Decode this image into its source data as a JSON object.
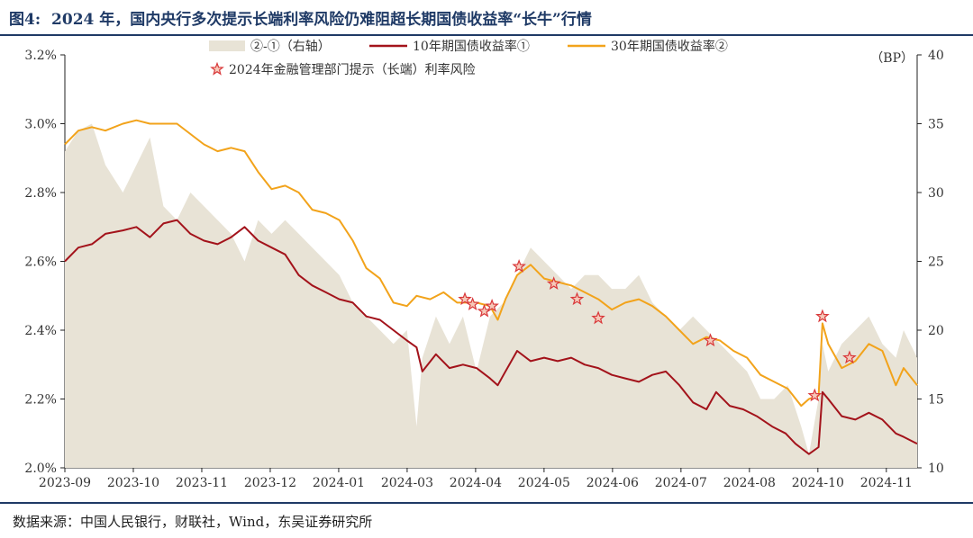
{
  "title": {
    "fig_label": "图4:",
    "text": "2024 年，国内央行多次提示长端利率风险仍难阻超长期国债收益率“长牛”行情"
  },
  "source": "数据来源：中国人民银行，财联社，Wind，东吴证券研究所",
  "chart_data": {
    "type": "line",
    "unit_label": "（BP）",
    "x_ticks": [
      "2023-09",
      "2023-10",
      "2023-11",
      "2023-12",
      "2024-01",
      "2024-03",
      "2024-04",
      "2024-05",
      "2024-06",
      "2024-07",
      "2024-08",
      "2024-10",
      "2024-11"
    ],
    "x_range": [
      "2023-09-01",
      "2024-11-15"
    ],
    "y_left": {
      "min": 2.0,
      "max": 3.2,
      "ticks": [
        "2.0%",
        "2.2%",
        "2.4%",
        "2.6%",
        "2.8%",
        "3.0%",
        "3.2%"
      ]
    },
    "y_right": {
      "min": 10,
      "max": 40,
      "ticks": [
        "10",
        "15",
        "20",
        "25",
        "30",
        "35",
        "40"
      ]
    },
    "legend": [
      {
        "name": "②-①（右轴）",
        "color": "#e8e3d6",
        "kind": "area"
      },
      {
        "name": "10年期国债收益率①",
        "color": "#a3131b",
        "kind": "line"
      },
      {
        "name": "30年期国债收益率②",
        "color": "#f2a31b",
        "kind": "line"
      },
      {
        "name": "2024年金融管理部门提示（长端）利率风险",
        "color": "#d9383a",
        "kind": "star"
      }
    ],
    "series": [
      {
        "name": "10年期国债收益率①",
        "axis": "left",
        "points": [
          [
            "2023-09-01",
            2.6
          ],
          [
            "2023-09-08",
            2.64
          ],
          [
            "2023-09-15",
            2.65
          ],
          [
            "2023-09-22",
            2.68
          ],
          [
            "2023-10-01",
            2.69
          ],
          [
            "2023-10-08",
            2.7
          ],
          [
            "2023-10-15",
            2.67
          ],
          [
            "2023-10-22",
            2.71
          ],
          [
            "2023-10-29",
            2.72
          ],
          [
            "2023-11-05",
            2.68
          ],
          [
            "2023-11-12",
            2.66
          ],
          [
            "2023-11-19",
            2.65
          ],
          [
            "2023-11-26",
            2.67
          ],
          [
            "2023-12-03",
            2.7
          ],
          [
            "2023-12-10",
            2.66
          ],
          [
            "2023-12-17",
            2.64
          ],
          [
            "2023-12-24",
            2.62
          ],
          [
            "2023-12-31",
            2.56
          ],
          [
            "2024-01-07",
            2.53
          ],
          [
            "2024-01-14",
            2.51
          ],
          [
            "2024-01-21",
            2.49
          ],
          [
            "2024-01-28",
            2.48
          ],
          [
            "2024-02-04",
            2.44
          ],
          [
            "2024-02-11",
            2.43
          ],
          [
            "2024-02-18",
            2.4
          ],
          [
            "2024-02-25",
            2.37
          ],
          [
            "2024-03-01",
            2.35
          ],
          [
            "2024-03-04",
            2.28
          ],
          [
            "2024-03-11",
            2.33
          ],
          [
            "2024-03-18",
            2.29
          ],
          [
            "2024-03-25",
            2.3
          ],
          [
            "2024-04-01",
            2.29
          ],
          [
            "2024-04-08",
            2.26
          ],
          [
            "2024-04-12",
            2.24
          ],
          [
            "2024-04-15",
            2.27
          ],
          [
            "2024-04-22",
            2.34
          ],
          [
            "2024-04-29",
            2.31
          ],
          [
            "2024-05-06",
            2.32
          ],
          [
            "2024-05-13",
            2.31
          ],
          [
            "2024-05-20",
            2.32
          ],
          [
            "2024-05-27",
            2.3
          ],
          [
            "2024-06-03",
            2.29
          ],
          [
            "2024-06-10",
            2.27
          ],
          [
            "2024-06-17",
            2.26
          ],
          [
            "2024-06-24",
            2.25
          ],
          [
            "2024-07-01",
            2.27
          ],
          [
            "2024-07-08",
            2.28
          ],
          [
            "2024-07-15",
            2.24
          ],
          [
            "2024-07-22",
            2.19
          ],
          [
            "2024-07-29",
            2.17
          ],
          [
            "2024-08-03",
            2.22
          ],
          [
            "2024-08-10",
            2.18
          ],
          [
            "2024-08-17",
            2.17
          ],
          [
            "2024-08-24",
            2.15
          ],
          [
            "2024-09-01",
            2.12
          ],
          [
            "2024-09-08",
            2.1
          ],
          [
            "2024-09-13",
            2.07
          ],
          [
            "2024-09-20",
            2.04
          ],
          [
            "2024-09-25",
            2.06
          ],
          [
            "2024-09-27",
            2.22
          ],
          [
            "2024-09-30",
            2.2
          ],
          [
            "2024-10-07",
            2.15
          ],
          [
            "2024-10-14",
            2.14
          ],
          [
            "2024-10-21",
            2.16
          ],
          [
            "2024-10-28",
            2.14
          ],
          [
            "2024-11-04",
            2.1
          ],
          [
            "2024-11-08",
            2.09
          ],
          [
            "2024-11-15",
            2.07
          ]
        ]
      },
      {
        "name": "30年期国债收益率②",
        "axis": "left",
        "points": [
          [
            "2023-09-01",
            2.94
          ],
          [
            "2023-09-08",
            2.98
          ],
          [
            "2023-09-15",
            2.99
          ],
          [
            "2023-09-22",
            2.98
          ],
          [
            "2023-10-01",
            3.0
          ],
          [
            "2023-10-08",
            3.01
          ],
          [
            "2023-10-15",
            3.0
          ],
          [
            "2023-10-22",
            3.0
          ],
          [
            "2023-10-29",
            3.0
          ],
          [
            "2023-11-05",
            2.97
          ],
          [
            "2023-11-12",
            2.94
          ],
          [
            "2023-11-19",
            2.92
          ],
          [
            "2023-11-26",
            2.93
          ],
          [
            "2023-12-03",
            2.92
          ],
          [
            "2023-12-10",
            2.86
          ],
          [
            "2023-12-17",
            2.81
          ],
          [
            "2023-12-24",
            2.82
          ],
          [
            "2023-12-31",
            2.8
          ],
          [
            "2024-01-07",
            2.75
          ],
          [
            "2024-01-14",
            2.74
          ],
          [
            "2024-01-21",
            2.72
          ],
          [
            "2024-01-28",
            2.66
          ],
          [
            "2024-02-04",
            2.58
          ],
          [
            "2024-02-11",
            2.55
          ],
          [
            "2024-02-18",
            2.48
          ],
          [
            "2024-02-25",
            2.47
          ],
          [
            "2024-03-01",
            2.5
          ],
          [
            "2024-03-08",
            2.49
          ],
          [
            "2024-03-15",
            2.51
          ],
          [
            "2024-03-22",
            2.48
          ],
          [
            "2024-04-01",
            2.48
          ],
          [
            "2024-04-08",
            2.47
          ],
          [
            "2024-04-12",
            2.43
          ],
          [
            "2024-04-16",
            2.49
          ],
          [
            "2024-04-22",
            2.56
          ],
          [
            "2024-04-29",
            2.59
          ],
          [
            "2024-05-06",
            2.55
          ],
          [
            "2024-05-13",
            2.54
          ],
          [
            "2024-05-20",
            2.53
          ],
          [
            "2024-05-27",
            2.51
          ],
          [
            "2024-06-03",
            2.49
          ],
          [
            "2024-06-10",
            2.46
          ],
          [
            "2024-06-17",
            2.48
          ],
          [
            "2024-06-24",
            2.49
          ],
          [
            "2024-07-01",
            2.47
          ],
          [
            "2024-07-08",
            2.44
          ],
          [
            "2024-07-15",
            2.4
          ],
          [
            "2024-07-22",
            2.36
          ],
          [
            "2024-07-29",
            2.38
          ],
          [
            "2024-08-05",
            2.37
          ],
          [
            "2024-08-12",
            2.34
          ],
          [
            "2024-08-19",
            2.32
          ],
          [
            "2024-08-26",
            2.27
          ],
          [
            "2024-09-02",
            2.25
          ],
          [
            "2024-09-09",
            2.23
          ],
          [
            "2024-09-16",
            2.18
          ],
          [
            "2024-09-20",
            2.2
          ],
          [
            "2024-09-25",
            2.21
          ],
          [
            "2024-09-27",
            2.42
          ],
          [
            "2024-09-30",
            2.36
          ],
          [
            "2024-10-07",
            2.29
          ],
          [
            "2024-10-14",
            2.31
          ],
          [
            "2024-10-21",
            2.36
          ],
          [
            "2024-10-28",
            2.34
          ],
          [
            "2024-11-04",
            2.24
          ],
          [
            "2024-11-08",
            2.29
          ],
          [
            "2024-11-15",
            2.24
          ]
        ]
      },
      {
        "name": "②-①（右轴）",
        "axis": "right",
        "points": [
          [
            "2023-09-01",
            33
          ],
          [
            "2023-09-08",
            34.5
          ],
          [
            "2023-09-15",
            35
          ],
          [
            "2023-09-22",
            32
          ],
          [
            "2023-10-01",
            30
          ],
          [
            "2023-10-08",
            32
          ],
          [
            "2023-10-15",
            34
          ],
          [
            "2023-10-22",
            29
          ],
          [
            "2023-10-29",
            28
          ],
          [
            "2023-11-05",
            30
          ],
          [
            "2023-11-12",
            29
          ],
          [
            "2023-11-19",
            28
          ],
          [
            "2023-11-26",
            27
          ],
          [
            "2023-12-03",
            25
          ],
          [
            "2023-12-10",
            28
          ],
          [
            "2023-12-17",
            27
          ],
          [
            "2023-12-24",
            28
          ],
          [
            "2023-12-31",
            27
          ],
          [
            "2024-01-07",
            26
          ],
          [
            "2024-01-14",
            25
          ],
          [
            "2024-01-21",
            24
          ],
          [
            "2024-01-28",
            22
          ],
          [
            "2024-02-04",
            21
          ],
          [
            "2024-02-11",
            20
          ],
          [
            "2024-02-18",
            19
          ],
          [
            "2024-02-25",
            20
          ],
          [
            "2024-03-01",
            13
          ],
          [
            "2024-03-04",
            18
          ],
          [
            "2024-03-11",
            21
          ],
          [
            "2024-03-18",
            19
          ],
          [
            "2024-03-25",
            21
          ],
          [
            "2024-04-01",
            17
          ],
          [
            "2024-04-08",
            21
          ],
          [
            "2024-04-15",
            22
          ],
          [
            "2024-04-22",
            24
          ],
          [
            "2024-04-29",
            26
          ],
          [
            "2024-05-06",
            25
          ],
          [
            "2024-05-13",
            24
          ],
          [
            "2024-05-20",
            23
          ],
          [
            "2024-05-27",
            24
          ],
          [
            "2024-06-03",
            24
          ],
          [
            "2024-06-10",
            23
          ],
          [
            "2024-06-17",
            23
          ],
          [
            "2024-06-24",
            24
          ],
          [
            "2024-07-01",
            22
          ],
          [
            "2024-07-08",
            21
          ],
          [
            "2024-07-15",
            20
          ],
          [
            "2024-07-22",
            21
          ],
          [
            "2024-07-29",
            20
          ],
          [
            "2024-08-05",
            19
          ],
          [
            "2024-08-12",
            18
          ],
          [
            "2024-08-19",
            17
          ],
          [
            "2024-08-26",
            15
          ],
          [
            "2024-09-02",
            15
          ],
          [
            "2024-09-09",
            16
          ],
          [
            "2024-09-16",
            13
          ],
          [
            "2024-09-20",
            11
          ],
          [
            "2024-09-25",
            15
          ],
          [
            "2024-09-27",
            19
          ],
          [
            "2024-09-30",
            17
          ],
          [
            "2024-10-07",
            19
          ],
          [
            "2024-10-14",
            20
          ],
          [
            "2024-10-21",
            21
          ],
          [
            "2024-10-28",
            19
          ],
          [
            "2024-11-04",
            18
          ],
          [
            "2024-11-08",
            20
          ],
          [
            "2024-11-15",
            18
          ]
        ]
      }
    ],
    "warning_stars": [
      [
        "2024-03-26",
        2.49
      ],
      [
        "2024-03-30",
        2.475
      ],
      [
        "2024-04-05",
        2.455
      ],
      [
        "2024-04-09",
        2.47
      ],
      [
        "2024-04-23",
        2.585
      ],
      [
        "2024-05-11",
        2.535
      ],
      [
        "2024-05-23",
        2.49
      ],
      [
        "2024-06-03",
        2.435
      ],
      [
        "2024-07-31",
        2.37
      ],
      [
        "2024-09-23",
        2.21
      ],
      [
        "2024-09-27",
        2.44
      ],
      [
        "2024-10-11",
        2.32
      ]
    ]
  }
}
